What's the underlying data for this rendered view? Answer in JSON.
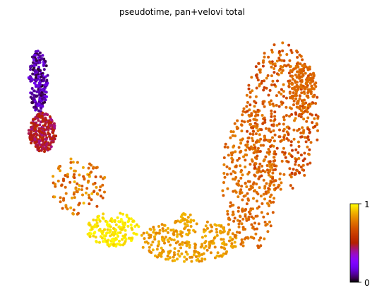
{
  "chart_data": {
    "type": "scatter",
    "title": "pseudotime, pan+velovi total",
    "xlabel": "",
    "ylabel": "",
    "axes_visible": false,
    "colormap": "gnuplot",
    "colorbar": {
      "min": 0,
      "max": 1,
      "tick_labels": [
        "0",
        "1"
      ],
      "placement": "right-bottom"
    },
    "clusters": [
      {
        "x": [
          -5.6,
          -4.9
        ],
        "y": [
          2.5,
          4.9
        ],
        "n": 230,
        "value": [
          0.02,
          0.2
        ]
      },
      {
        "x": [
          -5.6,
          -4.6
        ],
        "y": [
          1.0,
          2.5
        ],
        "n": 260,
        "value": [
          0.4,
          0.55
        ]
      },
      {
        "x": [
          -4.8,
          -2.8
        ],
        "y": [
          -1.4,
          0.8
        ],
        "n": 110,
        "value": [
          0.65,
          0.9
        ]
      },
      {
        "x": [
          -3.5,
          -1.6
        ],
        "y": [
          -2.6,
          -1.3
        ],
        "n": 170,
        "value": [
          0.93,
          1.0
        ]
      },
      {
        "x": [
          -1.6,
          2.0
        ],
        "y": [
          -3.2,
          -1.6
        ],
        "n": 260,
        "value": [
          0.8,
          0.9
        ]
      },
      {
        "x": [
          1.4,
          3.4
        ],
        "y": [
          -2.8,
          2.8
        ],
        "n": 330,
        "value": [
          0.7,
          0.8
        ]
      },
      {
        "x": [
          2.2,
          4.9
        ],
        "y": [
          -0.6,
          5.2
        ],
        "n": 430,
        "value": [
          0.6,
          0.8
        ]
      },
      {
        "x": [
          3.8,
          4.8
        ],
        "y": [
          2.6,
          4.4
        ],
        "n": 120,
        "value": [
          0.72,
          0.77
        ]
      },
      {
        "x": [
          -0.1,
          0.3
        ],
        "y": [
          -1.8,
          -1.3
        ],
        "n": 16,
        "value": [
          0.85,
          0.9
        ]
      }
    ],
    "xlim": [
      -6,
      6
    ],
    "ylim": [
      -4,
      6
    ]
  }
}
